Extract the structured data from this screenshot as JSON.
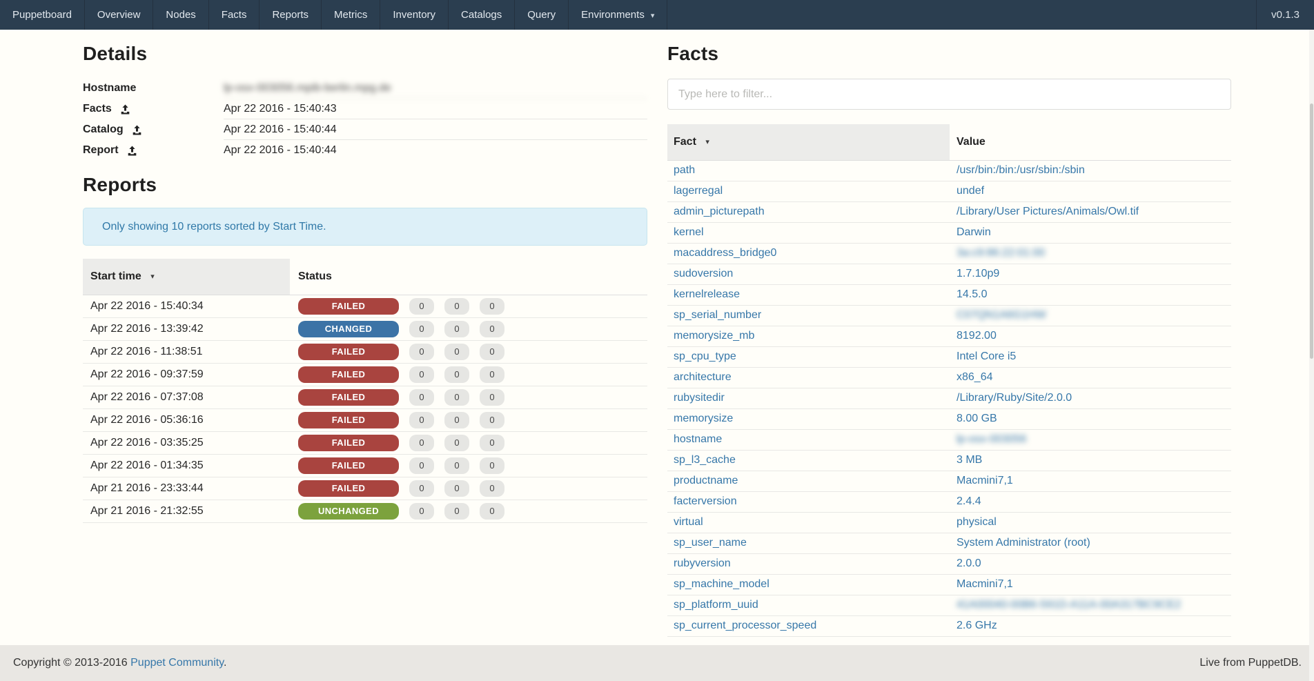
{
  "navbar": {
    "brand": "Puppetboard",
    "items": [
      "Overview",
      "Nodes",
      "Facts",
      "Reports",
      "Metrics",
      "Inventory",
      "Catalogs",
      "Query"
    ],
    "environments_label": "Environments",
    "version": "v0.1.3"
  },
  "details": {
    "title": "Details",
    "rows": [
      {
        "label": "Hostname",
        "icon": "none",
        "value": "lp-osx-003056.mpib-berlin.mpg.de",
        "blurred": true
      },
      {
        "label": "Facts",
        "icon": "upload-icon",
        "value": "Apr 22 2016 - 15:40:43",
        "blurred": false
      },
      {
        "label": "Catalog",
        "icon": "upload-icon",
        "value": "Apr 22 2016 - 15:40:44",
        "blurred": false
      },
      {
        "label": "Report",
        "icon": "upload-icon",
        "value": "Apr 22 2016 - 15:40:44",
        "blurred": false
      }
    ]
  },
  "reports": {
    "title": "Reports",
    "notice": "Only showing 10 reports sorted by Start Time.",
    "columns": {
      "start_time": "Start time",
      "status": "Status"
    },
    "status_colors": {
      "FAILED": "#a9443f",
      "CHANGED": "#3c73a6",
      "UNCHANGED": "#7ca23d"
    },
    "rows": [
      {
        "start_time": "Apr 22 2016 - 15:40:34",
        "status": "FAILED",
        "counts": [
          "0",
          "0",
          "0"
        ]
      },
      {
        "start_time": "Apr 22 2016 - 13:39:42",
        "status": "CHANGED",
        "counts": [
          "0",
          "0",
          "0"
        ]
      },
      {
        "start_time": "Apr 22 2016 - 11:38:51",
        "status": "FAILED",
        "counts": [
          "0",
          "0",
          "0"
        ]
      },
      {
        "start_time": "Apr 22 2016 - 09:37:59",
        "status": "FAILED",
        "counts": [
          "0",
          "0",
          "0"
        ]
      },
      {
        "start_time": "Apr 22 2016 - 07:37:08",
        "status": "FAILED",
        "counts": [
          "0",
          "0",
          "0"
        ]
      },
      {
        "start_time": "Apr 22 2016 - 05:36:16",
        "status": "FAILED",
        "counts": [
          "0",
          "0",
          "0"
        ]
      },
      {
        "start_time": "Apr 22 2016 - 03:35:25",
        "status": "FAILED",
        "counts": [
          "0",
          "0",
          "0"
        ]
      },
      {
        "start_time": "Apr 22 2016 - 01:34:35",
        "status": "FAILED",
        "counts": [
          "0",
          "0",
          "0"
        ]
      },
      {
        "start_time": "Apr 21 2016 - 23:33:44",
        "status": "FAILED",
        "counts": [
          "0",
          "0",
          "0"
        ]
      },
      {
        "start_time": "Apr 21 2016 - 21:32:55",
        "status": "UNCHANGED",
        "counts": [
          "0",
          "0",
          "0"
        ]
      }
    ]
  },
  "facts": {
    "title": "Facts",
    "filter_placeholder": "Type here to filter...",
    "columns": {
      "fact": "Fact",
      "value": "Value"
    },
    "rows": [
      {
        "name": "path",
        "value": "/usr/bin:/bin:/usr/sbin:/sbin",
        "blurred": false
      },
      {
        "name": "lagerregal",
        "value": "undef",
        "blurred": false
      },
      {
        "name": "admin_picturepath",
        "value": "/Library/User Pictures/Animals/Owl.tif",
        "blurred": false
      },
      {
        "name": "kernel",
        "value": "Darwin",
        "blurred": false
      },
      {
        "name": "macaddress_bridge0",
        "value": "3a:c9:86:22:01:00",
        "blurred": true
      },
      {
        "name": "sudoversion",
        "value": "1.7.10p9",
        "blurred": false
      },
      {
        "name": "kernelrelease",
        "value": "14.5.0",
        "blurred": false
      },
      {
        "name": "sp_serial_number",
        "value": "C07QN1A6G1HW",
        "blurred": true
      },
      {
        "name": "memorysize_mb",
        "value": "8192.00",
        "blurred": false
      },
      {
        "name": "sp_cpu_type",
        "value": "Intel Core i5",
        "blurred": false
      },
      {
        "name": "architecture",
        "value": "x86_64",
        "blurred": false
      },
      {
        "name": "rubysitedir",
        "value": "/Library/Ruby/Site/2.0.0",
        "blurred": false
      },
      {
        "name": "memorysize",
        "value": "8.00 GB",
        "blurred": false
      },
      {
        "name": "hostname",
        "value": "lp-osx-003056",
        "blurred": true
      },
      {
        "name": "sp_l3_cache",
        "value": "3 MB",
        "blurred": false
      },
      {
        "name": "productname",
        "value": "Macmini7,1",
        "blurred": false
      },
      {
        "name": "facterversion",
        "value": "2.4.4",
        "blurred": false
      },
      {
        "name": "virtual",
        "value": "physical",
        "blurred": false
      },
      {
        "name": "sp_user_name",
        "value": "System Administrator (root)",
        "blurred": false
      },
      {
        "name": "rubyversion",
        "value": "2.0.0",
        "blurred": false
      },
      {
        "name": "sp_machine_model",
        "value": "Macmini7,1",
        "blurred": false
      },
      {
        "name": "sp_platform_uuid",
        "value": "41A00040-00B6-591D-A11A-00A317BC9CE2",
        "blurred": true
      },
      {
        "name": "sp_current_processor_speed",
        "value": "2.6 GHz",
        "blurred": false
      }
    ]
  },
  "footer": {
    "copyright_prefix": "Copyright © 2013-2016 ",
    "community_link": "Puppet Community",
    "period": ".",
    "right_text": "Live from PuppetDB."
  },
  "colors": {
    "navbar_bg": "#2b3e50",
    "link": "#3677a9",
    "alert_bg": "#ddf0f8",
    "alert_text": "#3079a8",
    "failed": "#a9443f",
    "changed": "#3c73a6",
    "unchanged": "#7ca23d"
  }
}
